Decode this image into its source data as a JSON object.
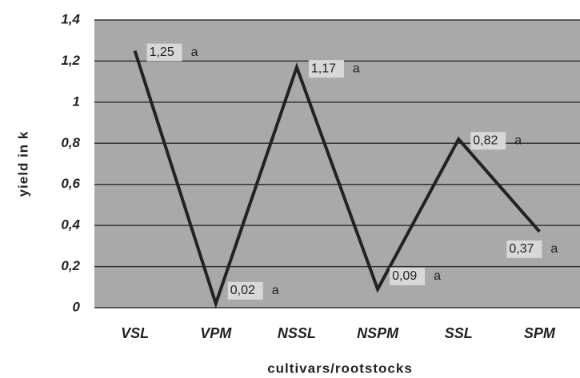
{
  "chart_data": {
    "type": "line",
    "categories": [
      "VSL",
      "VPM",
      "NSSL",
      "NSPM",
      "SSL",
      "SPM"
    ],
    "values": [
      1.25,
      0.02,
      1.17,
      0.09,
      0.82,
      0.37
    ],
    "value_labels": [
      "1,25",
      "0,02",
      "1,17",
      "0,09",
      "0,82",
      "0,37"
    ],
    "letter_labels": [
      "a",
      "a",
      "a",
      "a",
      "a",
      "a"
    ],
    "color": "#222222",
    "ylim": [
      0,
      1.4
    ],
    "yticks": [
      0,
      {
        "value": 0.2,
        "label": "0,2"
      },
      {
        "value": 0.4,
        "label": "0,4"
      },
      {
        "value": 0.6,
        "label": "0,6"
      },
      {
        "value": 0.8,
        "label": "0,8"
      },
      1,
      {
        "value": 1.2,
        "label": "1,2"
      },
      {
        "value": 1.4,
        "label": "1,4"
      }
    ],
    "ylabel": "yield in k",
    "xlabel": "cultivars/rootstocks",
    "grid": true
  }
}
